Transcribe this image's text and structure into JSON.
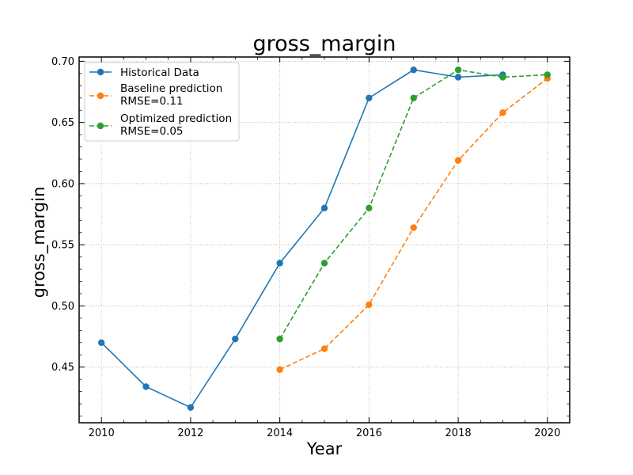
{
  "chart_data": {
    "type": "line",
    "title": "gross_margin",
    "xlabel": "Year",
    "ylabel": "gross_margin",
    "xlim": [
      2009.5,
      2020.5
    ],
    "ylim": [
      0.4045,
      0.7035
    ],
    "xticks": [
      2010,
      2012,
      2014,
      2016,
      2018,
      2020
    ],
    "yticks": [
      0.45,
      0.5,
      0.55,
      0.6,
      0.65,
      0.7
    ],
    "ytick_labels": [
      "0.45",
      "0.50",
      "0.55",
      "0.60",
      "0.65",
      "0.70"
    ],
    "grid": true,
    "legend_position": "top-left",
    "series": [
      {
        "name": "Historical Data",
        "color": "#1f77b4",
        "linestyle": "solid",
        "x": [
          2010,
          2011,
          2012,
          2013,
          2014,
          2015,
          2016,
          2017,
          2018,
          2019
        ],
        "values": [
          0.47,
          0.434,
          0.417,
          0.473,
          0.535,
          0.58,
          0.67,
          0.693,
          0.687,
          0.689
        ]
      },
      {
        "name": "Baseline prediction",
        "name_line2": "RMSE=0.11",
        "color": "#ff7f0e",
        "linestyle": "dashed",
        "x": [
          2014,
          2015,
          2016,
          2017,
          2018,
          2019,
          2020
        ],
        "values": [
          0.448,
          0.465,
          0.501,
          0.564,
          0.619,
          0.658,
          0.686
        ]
      },
      {
        "name": "Optimized prediction",
        "name_line2": "RMSE=0.05",
        "color": "#2ca02c",
        "linestyle": "dashed",
        "x": [
          2014,
          2015,
          2016,
          2017,
          2018,
          2019,
          2020
        ],
        "values": [
          0.473,
          0.535,
          0.58,
          0.67,
          0.693,
          0.687,
          0.689
        ]
      }
    ]
  }
}
